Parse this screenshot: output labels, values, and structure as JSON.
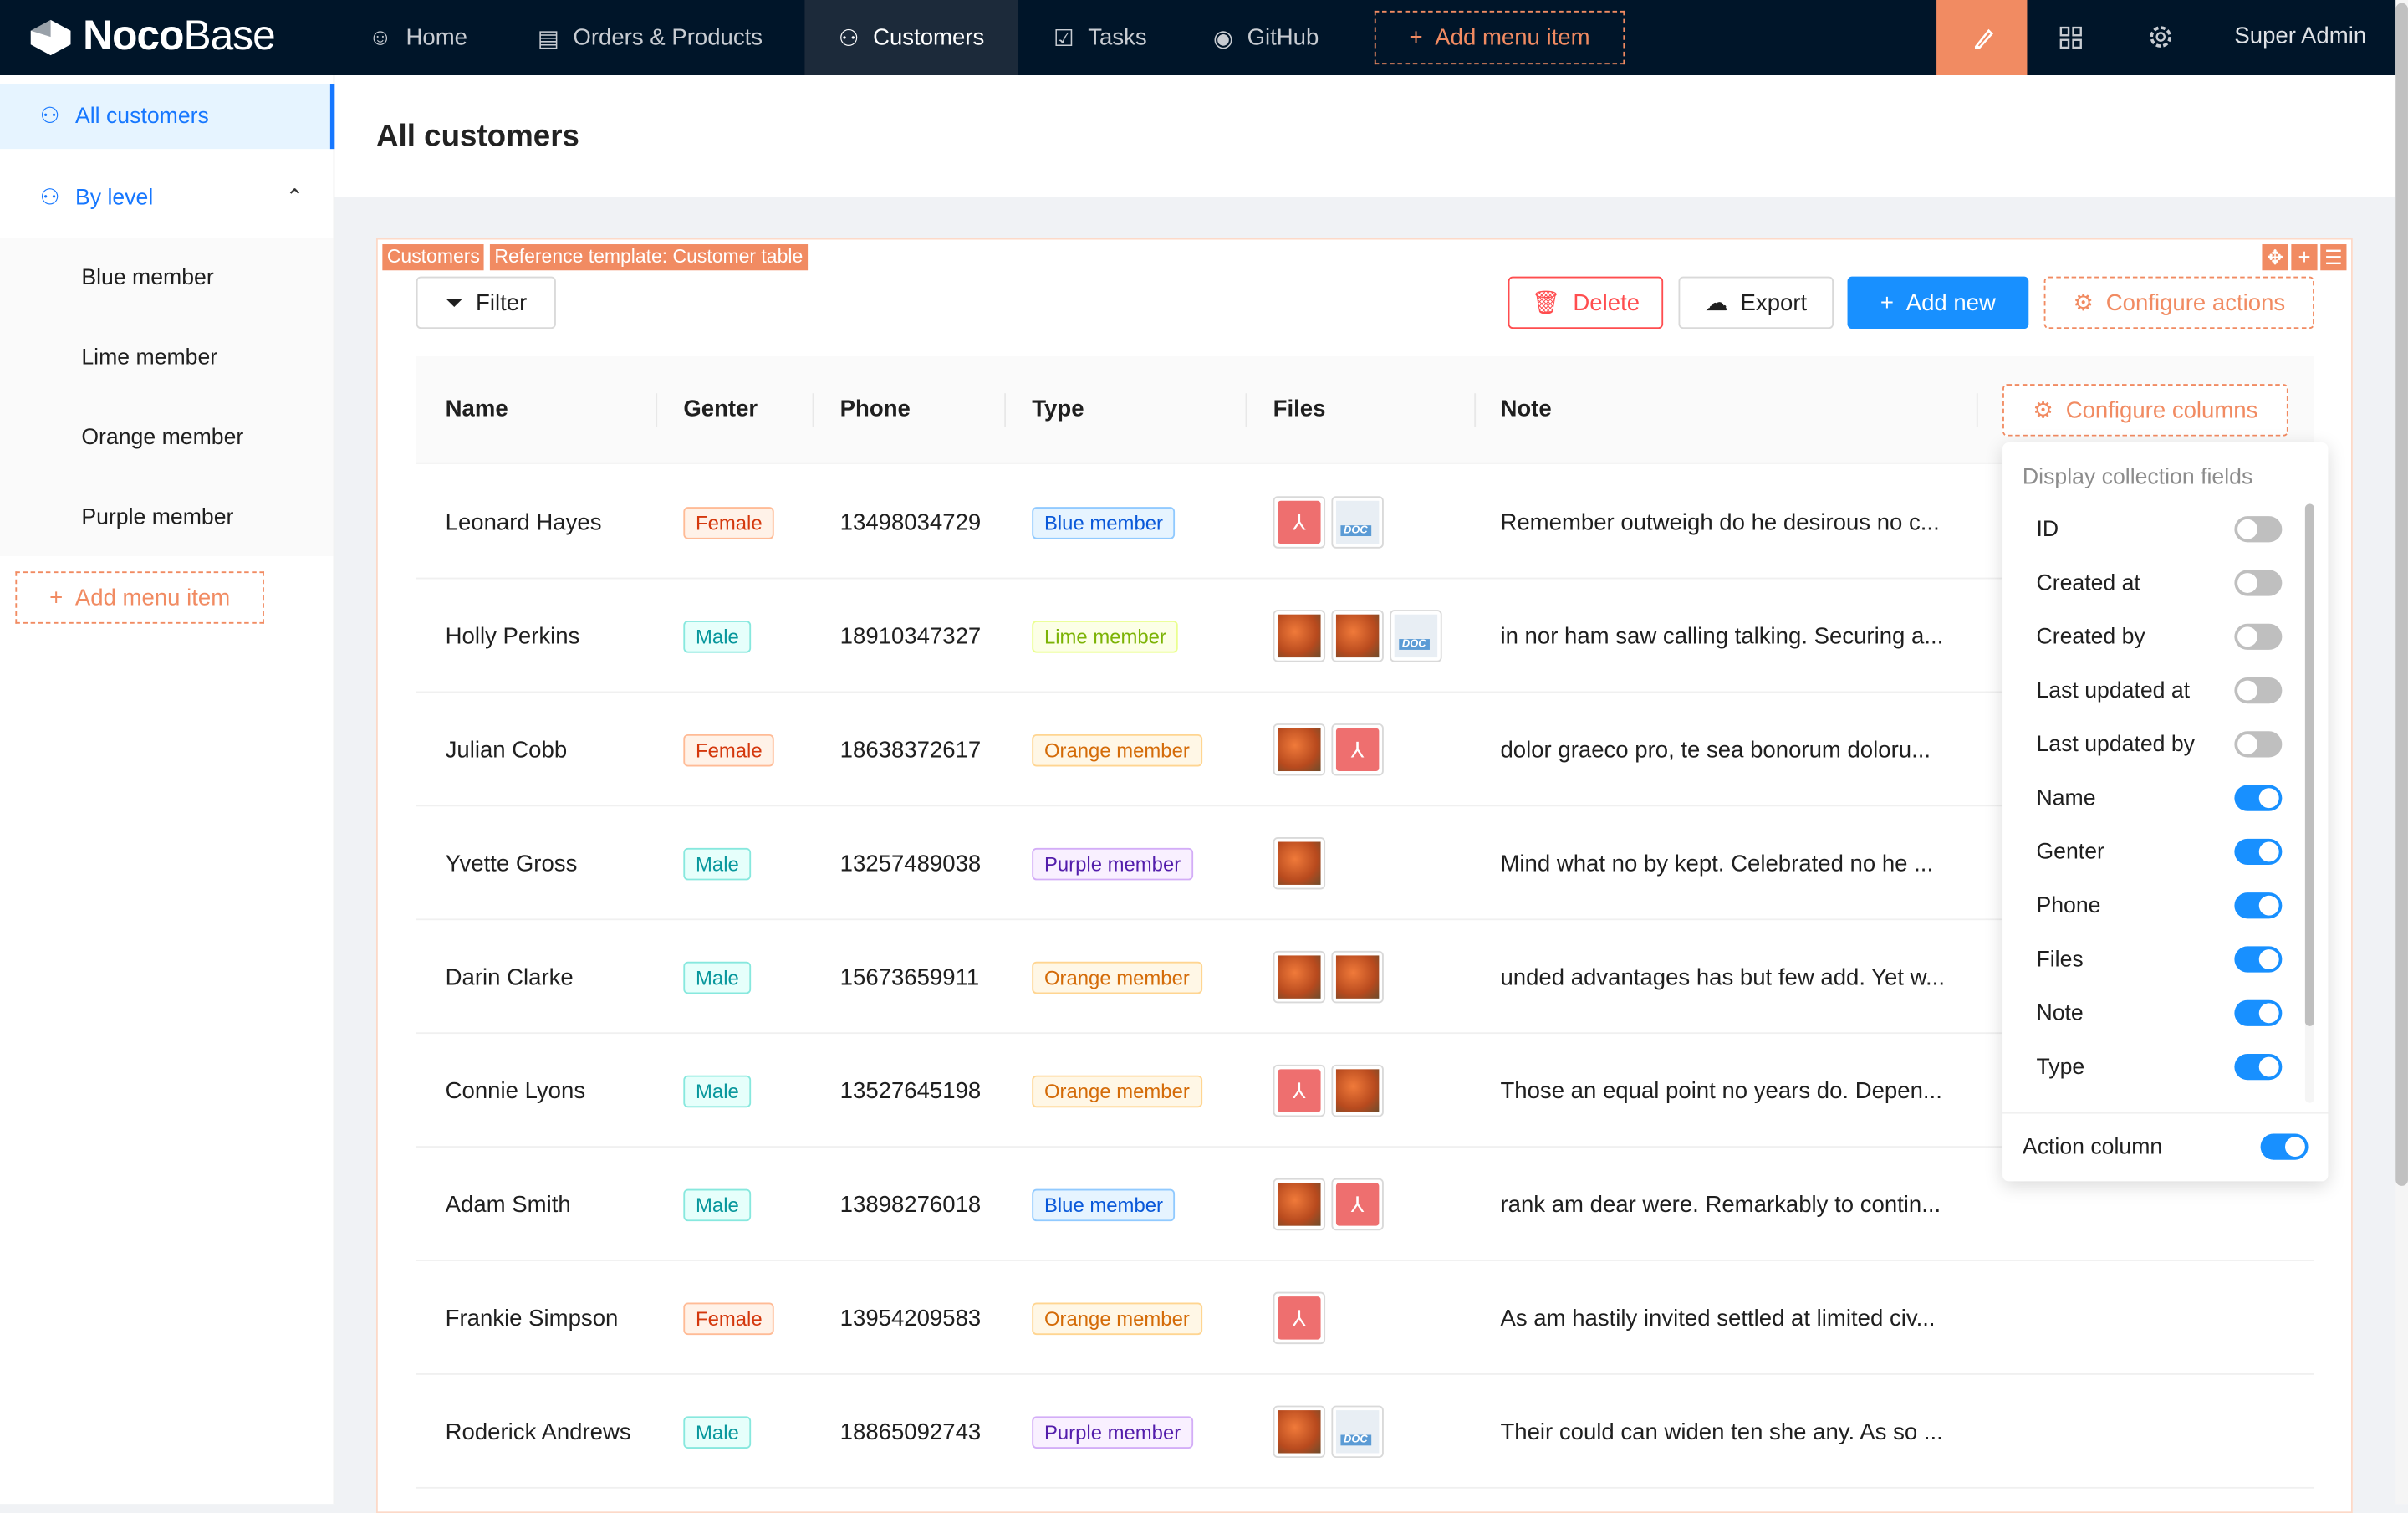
{
  "app": {
    "logo_bold": "Noco",
    "logo_light": "Base"
  },
  "topnav": {
    "items": [
      {
        "label": "Home",
        "icon": "smile-icon"
      },
      {
        "label": "Orders & Products",
        "icon": "file-icon"
      },
      {
        "label": "Customers",
        "icon": "user-icon",
        "active": true
      },
      {
        "label": "Tasks",
        "icon": "check-square-icon"
      },
      {
        "label": "GitHub",
        "icon": "github-icon"
      }
    ],
    "add_menu_item": "Add menu item",
    "user": "Super Admin"
  },
  "sidebar": {
    "items": [
      {
        "label": "All customers",
        "active": true
      },
      {
        "label": "By level",
        "expanded": true
      }
    ],
    "sub_items": [
      "Blue member",
      "Lime member",
      "Orange member",
      "Purple member"
    ],
    "add_menu_item": "Add menu item"
  },
  "page": {
    "title": "All customers"
  },
  "block": {
    "tags": [
      "Customers",
      "Reference template: Customer table"
    ]
  },
  "toolbar": {
    "filter": "Filter",
    "delete": "Delete",
    "export": "Export",
    "add_new": "Add new",
    "configure_actions": "Configure actions"
  },
  "table": {
    "columns": [
      "Name",
      "Genter",
      "Phone",
      "Type",
      "Files",
      "Note"
    ],
    "configure_columns": "Configure columns",
    "rows": [
      {
        "name": "Leonard Hayes",
        "gender": "Female",
        "phone": "13498034729",
        "type": "Blue member",
        "files": [
          "pdf",
          "doc"
        ],
        "note": "Remember outweigh do he desirous no c..."
      },
      {
        "name": "Holly Perkins",
        "gender": "Male",
        "phone": "18910347327",
        "type": "Lime member",
        "files": [
          "image",
          "image",
          "doc"
        ],
        "note": "in nor ham saw calling talking. Securing a..."
      },
      {
        "name": "Julian Cobb",
        "gender": "Female",
        "phone": "18638372617",
        "type": "Orange member",
        "files": [
          "image",
          "pdf"
        ],
        "note": "dolor graeco pro, te sea bonorum doloru..."
      },
      {
        "name": "Yvette Gross",
        "gender": "Male",
        "phone": "13257489038",
        "type": "Purple member",
        "files": [
          "image"
        ],
        "note": "Mind what no by kept. Celebrated no he ..."
      },
      {
        "name": "Darin Clarke",
        "gender": "Male",
        "phone": "15673659911",
        "type": "Orange member",
        "files": [
          "image",
          "image"
        ],
        "note": "unded advantages has but few add. Yet w..."
      },
      {
        "name": "Connie Lyons",
        "gender": "Male",
        "phone": "13527645198",
        "type": "Orange member",
        "files": [
          "pdf",
          "image"
        ],
        "note": "Those an equal point no years do. Depen..."
      },
      {
        "name": "Adam Smith",
        "gender": "Male",
        "phone": "13898276018",
        "type": "Blue member",
        "files": [
          "image",
          "pdf"
        ],
        "note": "rank am dear were. Remarkably to contin..."
      },
      {
        "name": "Frankie Simpson",
        "gender": "Female",
        "phone": "13954209583",
        "type": "Orange member",
        "files": [
          "pdf"
        ],
        "note": "As am hastily invited settled at limited civ..."
      },
      {
        "name": "Roderick Andrews",
        "gender": "Male",
        "phone": "18865092743",
        "type": "Purple member",
        "files": [
          "image",
          "doc"
        ],
        "note": "Their could can widen ten she any. As so ..."
      }
    ]
  },
  "popover": {
    "title": "Display collection fields",
    "fields": [
      {
        "label": "ID",
        "on": false
      },
      {
        "label": "Created at",
        "on": false
      },
      {
        "label": "Created by",
        "on": false
      },
      {
        "label": "Last updated at",
        "on": false
      },
      {
        "label": "Last updated by",
        "on": false
      },
      {
        "label": "Name",
        "on": true
      },
      {
        "label": "Genter",
        "on": true
      },
      {
        "label": "Phone",
        "on": true
      },
      {
        "label": "Files",
        "on": true
      },
      {
        "label": "Note",
        "on": true
      },
      {
        "label": "Type",
        "on": true
      }
    ],
    "action_column": {
      "label": "Action column",
      "on": true
    }
  },
  "colors": {
    "topbar": "#001529",
    "accent": "#1890ff",
    "orange": "#f18b62",
    "delete": "#ff4d4f"
  }
}
